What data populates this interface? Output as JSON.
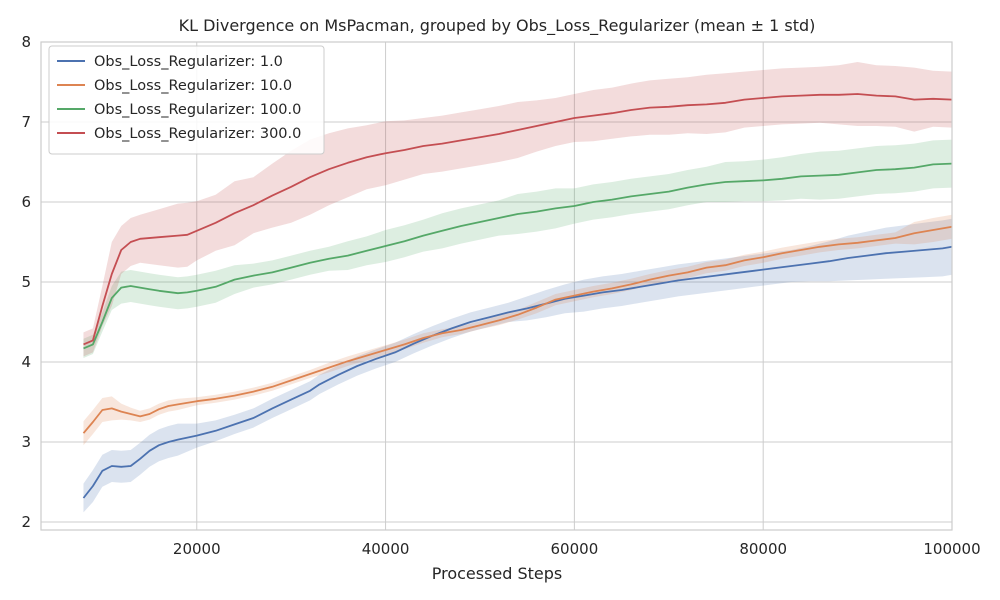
{
  "chart_data": {
    "type": "line",
    "title": "KL Divergence on MsPacman, grouped by Obs_Loss_Regularizer (mean ± 1 std)",
    "xlabel": "Processed Steps",
    "ylabel": "",
    "xlim": [
      3500,
      100000
    ],
    "ylim": [
      1.9,
      8.0
    ],
    "xticks": [
      20000,
      40000,
      60000,
      80000,
      100000
    ],
    "yticks": [
      2,
      3,
      4,
      5,
      6,
      7,
      8
    ],
    "grid": true,
    "legend_position": "top-left",
    "colors": [
      "#4c72b0",
      "#dd8452",
      "#55a868",
      "#c44e52"
    ],
    "series": [
      {
        "name": "Obs_Loss_Regularizer: 1.0",
        "points": [
          [
            8000,
            2.3
          ],
          [
            9000,
            2.45
          ],
          [
            10000,
            2.64
          ],
          [
            11000,
            2.7
          ],
          [
            12000,
            2.69
          ],
          [
            13000,
            2.7
          ],
          [
            14000,
            2.79
          ],
          [
            15000,
            2.89
          ],
          [
            16000,
            2.96
          ],
          [
            17000,
            3.0
          ],
          [
            18000,
            3.03
          ],
          [
            20000,
            3.08
          ],
          [
            22000,
            3.14
          ],
          [
            24000,
            3.22
          ],
          [
            26000,
            3.3
          ],
          [
            28000,
            3.42
          ],
          [
            30000,
            3.53
          ],
          [
            32000,
            3.64
          ],
          [
            33000,
            3.72
          ],
          [
            35000,
            3.84
          ],
          [
            37000,
            3.95
          ],
          [
            39000,
            4.04
          ],
          [
            41000,
            4.12
          ],
          [
            43000,
            4.23
          ],
          [
            45000,
            4.33
          ],
          [
            47000,
            4.42
          ],
          [
            49000,
            4.5
          ],
          [
            51000,
            4.56
          ],
          [
            53000,
            4.62
          ],
          [
            55000,
            4.67
          ],
          [
            57000,
            4.73
          ],
          [
            59000,
            4.79
          ],
          [
            61000,
            4.83
          ],
          [
            63000,
            4.87
          ],
          [
            65000,
            4.9
          ],
          [
            67000,
            4.94
          ],
          [
            69000,
            4.98
          ],
          [
            71000,
            5.02
          ],
          [
            73000,
            5.05
          ],
          [
            75000,
            5.08
          ],
          [
            77000,
            5.11
          ],
          [
            79000,
            5.14
          ],
          [
            81000,
            5.17
          ],
          [
            83000,
            5.2
          ],
          [
            85000,
            5.23
          ],
          [
            87000,
            5.26
          ],
          [
            89000,
            5.3
          ],
          [
            91000,
            5.33
          ],
          [
            93000,
            5.36
          ],
          [
            95000,
            5.38
          ],
          [
            97000,
            5.4
          ],
          [
            99000,
            5.42
          ],
          [
            100000,
            5.44
          ]
        ],
        "std": [
          0.18,
          0.2,
          0.2,
          0.2,
          0.2,
          0.2,
          0.2,
          0.2,
          0.2,
          0.2,
          0.2,
          0.15,
          0.13,
          0.12,
          0.12,
          0.12,
          0.12,
          0.12,
          0.12,
          0.12,
          0.12,
          0.12,
          0.12,
          0.12,
          0.12,
          0.12,
          0.12,
          0.12,
          0.12,
          0.15,
          0.17,
          0.18,
          0.2,
          0.2,
          0.2,
          0.2,
          0.2,
          0.2,
          0.2,
          0.2,
          0.2,
          0.2,
          0.2,
          0.2,
          0.22,
          0.25,
          0.28,
          0.3,
          0.32,
          0.33,
          0.34,
          0.35,
          0.35
        ]
      },
      {
        "name": "Obs_Loss_Regularizer: 10.0",
        "points": [
          [
            8000,
            3.11
          ],
          [
            9000,
            3.25
          ],
          [
            10000,
            3.4
          ],
          [
            11000,
            3.42
          ],
          [
            12000,
            3.38
          ],
          [
            13000,
            3.35
          ],
          [
            14000,
            3.32
          ],
          [
            15000,
            3.35
          ],
          [
            16000,
            3.41
          ],
          [
            17000,
            3.45
          ],
          [
            18000,
            3.47
          ],
          [
            20000,
            3.51
          ],
          [
            22000,
            3.54
          ],
          [
            24000,
            3.58
          ],
          [
            26000,
            3.63
          ],
          [
            28000,
            3.69
          ],
          [
            30000,
            3.77
          ],
          [
            32000,
            3.85
          ],
          [
            34000,
            3.93
          ],
          [
            36000,
            4.01
          ],
          [
            38000,
            4.08
          ],
          [
            40000,
            4.15
          ],
          [
            42000,
            4.22
          ],
          [
            44000,
            4.3
          ],
          [
            46000,
            4.36
          ],
          [
            48000,
            4.4
          ],
          [
            50000,
            4.46
          ],
          [
            52000,
            4.52
          ],
          [
            54000,
            4.59
          ],
          [
            56000,
            4.68
          ],
          [
            58000,
            4.78
          ],
          [
            60000,
            4.83
          ],
          [
            62000,
            4.88
          ],
          [
            64000,
            4.92
          ],
          [
            66000,
            4.97
          ],
          [
            68000,
            5.03
          ],
          [
            70000,
            5.08
          ],
          [
            72000,
            5.12
          ],
          [
            74000,
            5.18
          ],
          [
            76000,
            5.21
          ],
          [
            78000,
            5.27
          ],
          [
            80000,
            5.31
          ],
          [
            82000,
            5.36
          ],
          [
            84000,
            5.4
          ],
          [
            86000,
            5.44
          ],
          [
            88000,
            5.47
          ],
          [
            90000,
            5.49
          ],
          [
            92000,
            5.52
          ],
          [
            94000,
            5.55
          ],
          [
            96000,
            5.61
          ],
          [
            98000,
            5.65
          ],
          [
            100000,
            5.69
          ]
        ],
        "std": [
          0.15,
          0.15,
          0.15,
          0.15,
          0.1,
          0.08,
          0.07,
          0.07,
          0.07,
          0.07,
          0.07,
          0.05,
          0.05,
          0.05,
          0.05,
          0.05,
          0.05,
          0.05,
          0.06,
          0.06,
          0.06,
          0.06,
          0.06,
          0.06,
          0.05,
          0.05,
          0.05,
          0.06,
          0.06,
          0.07,
          0.07,
          0.07,
          0.07,
          0.07,
          0.07,
          0.07,
          0.07,
          0.07,
          0.07,
          0.07,
          0.07,
          0.07,
          0.07,
          0.07,
          0.07,
          0.07,
          0.07,
          0.07,
          0.07,
          0.14,
          0.15,
          0.15
        ]
      },
      {
        "name": "Obs_Loss_Regularizer: 100.0",
        "points": [
          [
            8000,
            4.17
          ],
          [
            9000,
            4.22
          ],
          [
            10000,
            4.5
          ],
          [
            11000,
            4.8
          ],
          [
            12000,
            4.93
          ],
          [
            13000,
            4.95
          ],
          [
            14000,
            4.93
          ],
          [
            15000,
            4.91
          ],
          [
            16000,
            4.89
          ],
          [
            18000,
            4.86
          ],
          [
            19000,
            4.87
          ],
          [
            20000,
            4.89
          ],
          [
            22000,
            4.94
          ],
          [
            24000,
            5.03
          ],
          [
            26000,
            5.08
          ],
          [
            28000,
            5.12
          ],
          [
            30000,
            5.18
          ],
          [
            32000,
            5.24
          ],
          [
            34000,
            5.29
          ],
          [
            36000,
            5.33
          ],
          [
            38000,
            5.39
          ],
          [
            40000,
            5.45
          ],
          [
            42000,
            5.51
          ],
          [
            44000,
            5.58
          ],
          [
            46000,
            5.64
          ],
          [
            48000,
            5.7
          ],
          [
            50000,
            5.75
          ],
          [
            52000,
            5.8
          ],
          [
            54000,
            5.85
          ],
          [
            56000,
            5.88
          ],
          [
            58000,
            5.92
          ],
          [
            60000,
            5.95
          ],
          [
            62000,
            6.0
          ],
          [
            64000,
            6.03
          ],
          [
            66000,
            6.07
          ],
          [
            68000,
            6.1
          ],
          [
            70000,
            6.13
          ],
          [
            72000,
            6.18
          ],
          [
            74000,
            6.22
          ],
          [
            76000,
            6.25
          ],
          [
            78000,
            6.26
          ],
          [
            80000,
            6.27
          ],
          [
            82000,
            6.29
          ],
          [
            84000,
            6.32
          ],
          [
            86000,
            6.33
          ],
          [
            88000,
            6.34
          ],
          [
            90000,
            6.37
          ],
          [
            92000,
            6.4
          ],
          [
            94000,
            6.41
          ],
          [
            96000,
            6.43
          ],
          [
            98000,
            6.47
          ],
          [
            100000,
            6.48
          ]
        ],
        "std": [
          0.12,
          0.12,
          0.12,
          0.15,
          0.2,
          0.2,
          0.2,
          0.2,
          0.2,
          0.2,
          0.2,
          0.2,
          0.2,
          0.18,
          0.15,
          0.15,
          0.15,
          0.15,
          0.15,
          0.18,
          0.18,
          0.2,
          0.2,
          0.2,
          0.22,
          0.22,
          0.22,
          0.22,
          0.25,
          0.25,
          0.25,
          0.22,
          0.22,
          0.22,
          0.22,
          0.22,
          0.22,
          0.22,
          0.22,
          0.25,
          0.25,
          0.26,
          0.27,
          0.28,
          0.3,
          0.3,
          0.3,
          0.3,
          0.3,
          0.3,
          0.3,
          0.3
        ]
      },
      {
        "name": "Obs_Loss_Regularizer: 300.0",
        "points": [
          [
            8000,
            4.22
          ],
          [
            9000,
            4.27
          ],
          [
            10000,
            4.7
          ],
          [
            11000,
            5.1
          ],
          [
            12000,
            5.4
          ],
          [
            13000,
            5.5
          ],
          [
            14000,
            5.54
          ],
          [
            16000,
            5.56
          ],
          [
            18000,
            5.58
          ],
          [
            19000,
            5.59
          ],
          [
            20000,
            5.64
          ],
          [
            22000,
            5.74
          ],
          [
            24000,
            5.86
          ],
          [
            26000,
            5.96
          ],
          [
            28000,
            6.08
          ],
          [
            30000,
            6.19
          ],
          [
            32000,
            6.31
          ],
          [
            34000,
            6.41
          ],
          [
            36000,
            6.49
          ],
          [
            38000,
            6.56
          ],
          [
            40000,
            6.61
          ],
          [
            42000,
            6.65
          ],
          [
            44000,
            6.7
          ],
          [
            46000,
            6.73
          ],
          [
            48000,
            6.77
          ],
          [
            50000,
            6.81
          ],
          [
            52000,
            6.85
          ],
          [
            54000,
            6.9
          ],
          [
            56000,
            6.95
          ],
          [
            58000,
            7.0
          ],
          [
            60000,
            7.05
          ],
          [
            62000,
            7.08
          ],
          [
            64000,
            7.11
          ],
          [
            66000,
            7.15
          ],
          [
            68000,
            7.18
          ],
          [
            70000,
            7.19
          ],
          [
            72000,
            7.21
          ],
          [
            74000,
            7.22
          ],
          [
            76000,
            7.24
          ],
          [
            78000,
            7.28
          ],
          [
            80000,
            7.3
          ],
          [
            82000,
            7.32
          ],
          [
            84000,
            7.33
          ],
          [
            86000,
            7.34
          ],
          [
            88000,
            7.34
          ],
          [
            90000,
            7.35
          ],
          [
            92000,
            7.33
          ],
          [
            94000,
            7.32
          ],
          [
            96000,
            7.28
          ],
          [
            98000,
            7.29
          ],
          [
            100000,
            7.28
          ]
        ],
        "std": [
          0.15,
          0.15,
          0.25,
          0.4,
          0.3,
          0.3,
          0.3,
          0.35,
          0.4,
          0.4,
          0.37,
          0.35,
          0.4,
          0.35,
          0.4,
          0.45,
          0.47,
          0.45,
          0.43,
          0.4,
          0.4,
          0.37,
          0.35,
          0.35,
          0.35,
          0.35,
          0.35,
          0.35,
          0.32,
          0.3,
          0.3,
          0.32,
          0.32,
          0.33,
          0.34,
          0.35,
          0.35,
          0.37,
          0.37,
          0.35,
          0.35,
          0.35,
          0.35,
          0.35,
          0.37,
          0.4,
          0.38,
          0.38,
          0.4,
          0.35,
          0.35
        ]
      }
    ]
  }
}
